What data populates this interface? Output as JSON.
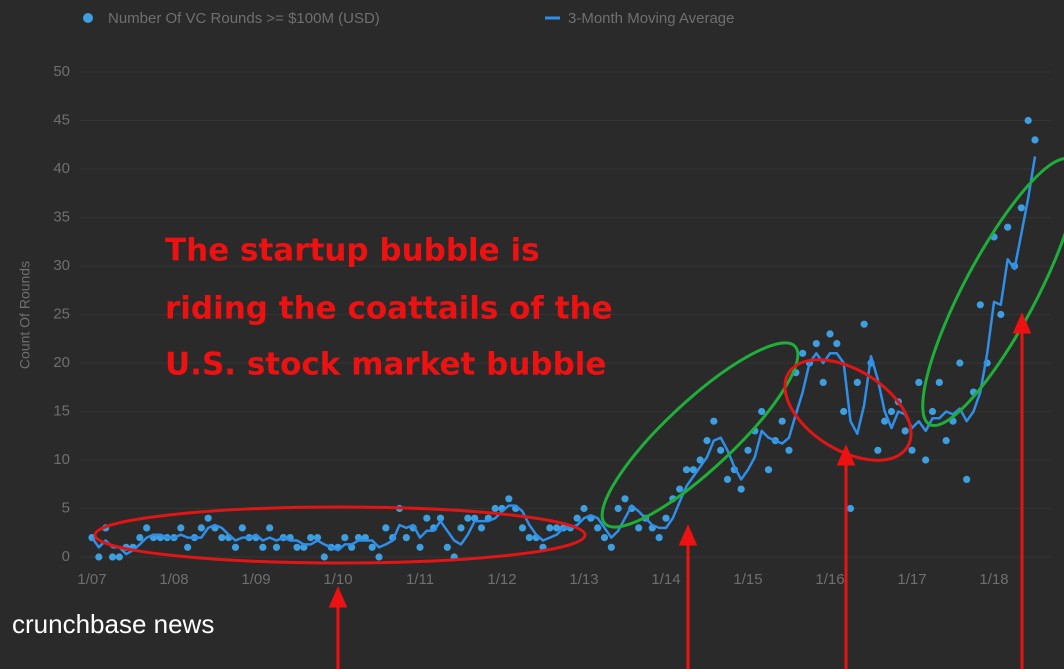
{
  "chart_data": {
    "type": "scatter",
    "ylabel": "Count Of Rounds",
    "annotations": [
      "The startup bubble is",
      "riding the coattails of the",
      "U.S. stock market bubble"
    ],
    "watermark": "crunchbase news",
    "x": [
      "1/07",
      "2/07",
      "3/07",
      "4/07",
      "5/07",
      "6/07",
      "7/07",
      "8/07",
      "9/07",
      "10/07",
      "11/07",
      "12/07",
      "1/08",
      "2/08",
      "3/08",
      "4/08",
      "5/08",
      "6/08",
      "7/08",
      "8/08",
      "9/08",
      "10/08",
      "11/08",
      "12/08",
      "1/09",
      "2/09",
      "3/09",
      "4/09",
      "5/09",
      "6/09",
      "7/09",
      "8/09",
      "9/09",
      "10/09",
      "11/09",
      "12/09",
      "1/10",
      "2/10",
      "3/10",
      "4/10",
      "5/10",
      "6/10",
      "7/10",
      "8/10",
      "9/10",
      "10/10",
      "11/10",
      "12/10",
      "1/11",
      "2/11",
      "3/11",
      "4/11",
      "5/11",
      "6/11",
      "7/11",
      "8/11",
      "9/11",
      "10/11",
      "11/11",
      "12/11",
      "1/12",
      "2/12",
      "3/12",
      "4/12",
      "5/12",
      "6/12",
      "7/12",
      "8/12",
      "9/12",
      "10/12",
      "11/12",
      "12/12",
      "1/13",
      "2/13",
      "3/13",
      "4/13",
      "5/13",
      "6/13",
      "7/13",
      "8/13",
      "9/13",
      "10/13",
      "11/13",
      "12/13",
      "1/14",
      "2/14",
      "3/14",
      "4/14",
      "5/14",
      "6/14",
      "7/14",
      "8/14",
      "9/14",
      "10/14",
      "11/14",
      "12/14",
      "1/15",
      "2/15",
      "3/15",
      "4/15",
      "5/15",
      "6/15",
      "7/15",
      "8/15",
      "9/15",
      "10/15",
      "11/15",
      "12/15",
      "1/16",
      "2/16",
      "3/16",
      "4/16",
      "5/16",
      "6/16",
      "7/16",
      "8/16",
      "9/16",
      "10/16",
      "11/16",
      "12/16",
      "1/17",
      "2/17",
      "3/17",
      "4/17",
      "5/17",
      "6/17",
      "7/17",
      "8/17",
      "9/17",
      "10/17",
      "11/17",
      "12/17",
      "1/18",
      "2/18",
      "3/18",
      "4/18",
      "5/18",
      "6/18",
      "7/18"
    ],
    "xticks": [
      "1/07",
      "1/08",
      "1/09",
      "1/10",
      "1/11",
      "1/12",
      "1/13",
      "1/14",
      "1/15",
      "1/16",
      "1/17",
      "1/18"
    ],
    "ylim": [
      0,
      50
    ],
    "yticks": [
      0,
      5,
      10,
      15,
      20,
      25,
      30,
      35,
      40,
      45,
      50
    ],
    "grid": true,
    "series": [
      {
        "name": "Number Of VC Rounds >= $100M (USD)",
        "color": "#3d9fe0",
        "mode": "markers",
        "values": [
          2,
          0,
          3,
          0,
          0,
          1,
          1,
          2,
          3,
          2,
          2,
          2,
          2,
          3,
          1,
          2,
          3,
          4,
          3,
          2,
          2,
          1,
          3,
          2,
          2,
          1,
          3,
          1,
          2,
          2,
          1,
          1,
          2,
          2,
          0,
          1,
          1,
          2,
          1,
          2,
          2,
          1,
          0,
          3,
          2,
          5,
          2,
          3,
          1,
          4,
          3,
          4,
          1,
          0,
          3,
          4,
          4,
          3,
          4,
          5,
          5,
          6,
          5,
          3,
          2,
          2,
          1,
          3,
          3,
          3,
          3,
          4,
          5,
          4,
          3,
          2,
          1,
          5,
          6,
          5,
          3,
          4,
          3,
          2,
          4,
          6,
          7,
          9,
          9,
          10,
          12,
          14,
          11,
          8,
          9,
          7,
          11,
          13,
          15,
          9,
          12,
          14,
          11,
          19,
          21,
          20,
          22,
          18,
          23,
          22,
          15,
          5,
          18,
          24,
          20,
          11,
          14,
          15,
          16,
          13,
          11,
          18,
          10,
          15,
          18,
          12,
          14,
          20,
          8,
          17,
          26,
          20,
          33,
          25,
          34,
          30,
          36,
          45,
          43
        ]
      },
      {
        "name": "3-Month Moving Average",
        "color": "#2f8fe8",
        "mode": "line",
        "values": [
          2,
          1,
          1.7,
          1,
          1,
          0.3,
          0.7,
          1.3,
          2,
          2.3,
          2.3,
          2,
          2,
          2.3,
          2,
          2,
          2,
          3,
          3.3,
          3,
          2.3,
          1.7,
          2,
          2,
          2.3,
          1.7,
          2,
          1.7,
          2,
          1.7,
          1.7,
          1.3,
          1.3,
          1.7,
          1.3,
          1,
          0.7,
          1.3,
          1.3,
          1.7,
          1.7,
          1.7,
          1,
          1.3,
          1.7,
          3.3,
          3,
          3.3,
          2,
          2.7,
          2.7,
          3.7,
          2.7,
          1.7,
          1.3,
          2.3,
          3.7,
          3.7,
          3.7,
          4,
          4.7,
          5.3,
          5.3,
          4.7,
          3.3,
          2.3,
          1.7,
          2,
          2.3,
          3,
          3,
          3.3,
          4,
          4.3,
          4,
          3,
          2,
          2.7,
          4,
          5.3,
          4.7,
          4,
          3.3,
          3,
          3,
          4,
          5.7,
          7.3,
          8.3,
          9.3,
          10.3,
          12,
          12.3,
          11,
          9.3,
          8,
          9,
          10.3,
          13,
          12.3,
          12,
          11.7,
          12.3,
          14.7,
          17,
          20,
          21,
          20,
          21,
          21,
          20,
          14,
          12.7,
          15.7,
          20.7,
          18.3,
          15,
          13.3,
          15,
          14.7,
          13.3,
          14,
          13,
          14.3,
          14.3,
          15,
          14.7,
          15.3,
          14,
          15,
          17,
          21,
          26.3,
          26,
          30.7,
          29.7,
          33.3,
          37,
          41.3
        ]
      }
    ]
  }
}
